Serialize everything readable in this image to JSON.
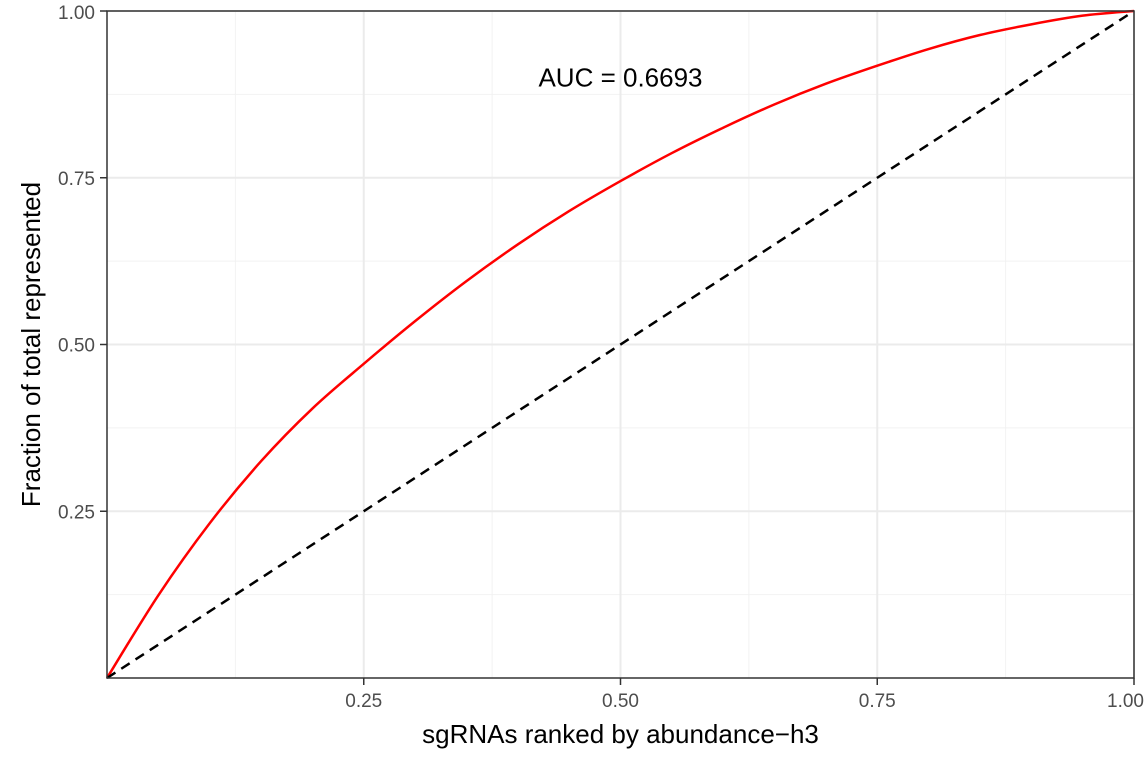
{
  "chart_data": {
    "type": "line",
    "xlabel": "sgRNAs ranked by abundance−h3",
    "ylabel": "Fraction of total represented",
    "xlim": [
      0,
      1
    ],
    "ylim": [
      0,
      1
    ],
    "x_ticks": [
      {
        "value": 0.25,
        "label": "0.25"
      },
      {
        "value": 0.5,
        "label": "0.50"
      },
      {
        "value": 0.75,
        "label": "0.75"
      },
      {
        "value": 1.0,
        "label": "1.00"
      }
    ],
    "y_ticks": [
      {
        "value": 0.25,
        "label": "0.25"
      },
      {
        "value": 0.5,
        "label": "0.50"
      },
      {
        "value": 0.75,
        "label": "0.75"
      },
      {
        "value": 1.0,
        "label": "1.00"
      }
    ],
    "grid": true,
    "annotation": {
      "text": "AUC = 0.6693",
      "x": 0.5,
      "y": 0.9
    },
    "series": [
      {
        "style": "solid",
        "color": "#ff0000",
        "x": [
          0,
          0.05,
          0.1,
          0.15,
          0.2,
          0.25,
          0.3,
          0.35,
          0.4,
          0.45,
          0.5,
          0.55,
          0.6,
          0.65,
          0.7,
          0.75,
          0.8,
          0.85,
          0.9,
          0.95,
          1.0
        ],
        "y": [
          0,
          0.124,
          0.232,
          0.325,
          0.404,
          0.471,
          0.535,
          0.595,
          0.65,
          0.7,
          0.745,
          0.787,
          0.825,
          0.86,
          0.891,
          0.918,
          0.943,
          0.964,
          0.98,
          0.993,
          1.0
        ]
      },
      {
        "style": "dashed",
        "color": "#000000",
        "x": [
          0,
          1
        ],
        "y": [
          0,
          1
        ]
      }
    ]
  }
}
